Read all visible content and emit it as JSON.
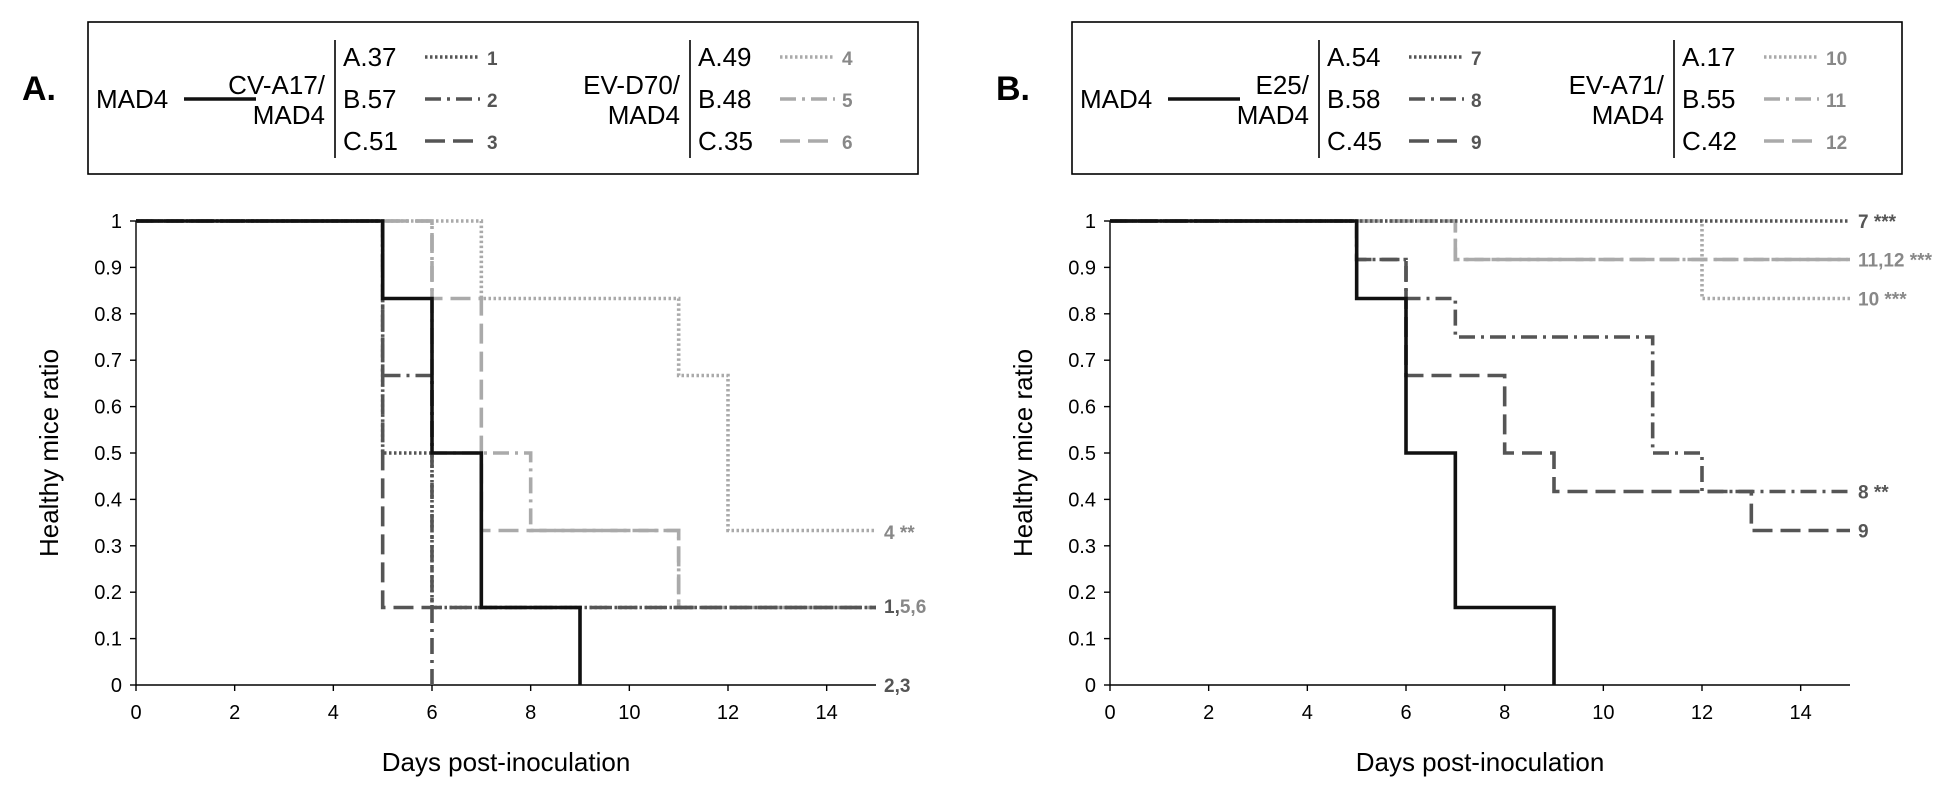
{
  "colors": {
    "mad4": "#111111",
    "dark": "#555555",
    "light": "#aaaaaa",
    "endLabelLight": "#888888",
    "axis": "#000000"
  },
  "chart_data": [
    {
      "type": "line",
      "step": true,
      "panel_label": "A.",
      "xlabel": "Days post-inoculation",
      "ylabel": "Healthy mice ratio",
      "xlim": [
        0,
        15
      ],
      "ylim": [
        0,
        1
      ],
      "xticks": [
        "0",
        "2",
        "4",
        "6",
        "8",
        "10",
        "12",
        "14"
      ],
      "yticks": [
        "0",
        "0.1",
        "0.2",
        "0.3",
        "0.4",
        "0.5",
        "0.6",
        "0.7",
        "0.8",
        "0.9",
        "1"
      ],
      "legend": {
        "reference": "MAD4",
        "groups": [
          {
            "name1": "CV-A17/",
            "name2": "MAD4",
            "items": [
              {
                "label": "A.37",
                "num": "1"
              },
              {
                "label": "B.57",
                "num": "2"
              },
              {
                "label": "C.51",
                "num": "3"
              }
            ]
          },
          {
            "name1": "EV-D70/",
            "name2": "MAD4",
            "items": [
              {
                "label": "A.49",
                "num": "4"
              },
              {
                "label": "B.48",
                "num": "5"
              },
              {
                "label": "C.35",
                "num": "6"
              }
            ]
          }
        ]
      },
      "end_labels": [
        {
          "y": 0.33,
          "parts": [
            {
              "t": "4 **",
              "c": "light"
            }
          ]
        },
        {
          "y": 0.17,
          "parts": [
            {
              "t": "1,",
              "c": "dark"
            },
            {
              "t": "5,6",
              "c": "light"
            }
          ]
        },
        {
          "y": 0.0,
          "parts": [
            {
              "t": "2,3",
              "c": "dark"
            }
          ]
        }
      ],
      "series": [
        {
          "name": "MAD4",
          "style": "solid",
          "color": "mad4",
          "x": [
            0,
            5,
            6,
            7,
            9
          ],
          "y": [
            1,
            0.833,
            0.5,
            0.167,
            0
          ],
          "end": 9
        },
        {
          "name": "1",
          "style": "dotted",
          "color": "dark",
          "x": [
            0,
            5,
            6,
            15
          ],
          "y": [
            1,
            0.5,
            0.167,
            0.167
          ],
          "end": 15
        },
        {
          "name": "2",
          "style": "dashdot",
          "color": "dark",
          "x": [
            0,
            5,
            6
          ],
          "y": [
            1,
            0.667,
            0
          ],
          "end": 6
        },
        {
          "name": "3",
          "style": "dashed",
          "color": "dark",
          "x": [
            0,
            5,
            15
          ],
          "y": [
            1,
            0.167,
            0.167
          ],
          "end": 15
        },
        {
          "name": "4",
          "style": "dotted",
          "color": "light",
          "x": [
            0,
            6,
            7,
            11,
            12,
            15
          ],
          "y": [
            1,
            1,
            0.833,
            0.667,
            0.333,
            0.333
          ],
          "end": 15
        },
        {
          "name": "5",
          "style": "dashdot",
          "color": "light",
          "x": [
            0,
            6,
            8,
            11,
            15
          ],
          "y": [
            1,
            0.5,
            0.333,
            0.167,
            0.167
          ],
          "end": 15
        },
        {
          "name": "6",
          "style": "dashed",
          "color": "light",
          "x": [
            0,
            6,
            7,
            11,
            15
          ],
          "y": [
            1,
            0.833,
            0.333,
            0.167,
            0.167
          ],
          "end": 15
        }
      ]
    },
    {
      "type": "line",
      "step": true,
      "panel_label": "B.",
      "xlabel": "Days post-inoculation",
      "ylabel": "Healthy mice ratio",
      "xlim": [
        0,
        15
      ],
      "ylim": [
        0,
        1
      ],
      "xticks": [
        "0",
        "2",
        "4",
        "6",
        "8",
        "10",
        "12",
        "14"
      ],
      "yticks": [
        "0",
        "0.1",
        "0.2",
        "0.3",
        "0.4",
        "0.5",
        "0.6",
        "0.7",
        "0.8",
        "0.9",
        "1"
      ],
      "legend": {
        "reference": "MAD4",
        "groups": [
          {
            "name1": "E25/",
            "name2": "MAD4",
            "items": [
              {
                "label": "A.54",
                "num": "7"
              },
              {
                "label": "B.58",
                "num": "8"
              },
              {
                "label": "C.45",
                "num": "9"
              }
            ]
          },
          {
            "name1": "EV-A71/",
            "name2": "MAD4",
            "items": [
              {
                "label": "A.17",
                "num": "10"
              },
              {
                "label": "B.55",
                "num": "11"
              },
              {
                "label": "C.42",
                "num": "12"
              }
            ]
          }
        ]
      },
      "end_labels": [
        {
          "y": 1.0,
          "parts": [
            {
              "t": "7 ***",
              "c": "dark"
            }
          ]
        },
        {
          "y": 0.917,
          "parts": [
            {
              "t": "11,12 ***",
              "c": "light"
            }
          ]
        },
        {
          "y": 0.833,
          "parts": [
            {
              "t": "10 ***",
              "c": "light"
            }
          ]
        },
        {
          "y": 0.417,
          "parts": [
            {
              "t": "8 **",
              "c": "dark"
            }
          ]
        },
        {
          "y": 0.333,
          "parts": [
            {
              "t": "9",
              "c": "dark"
            }
          ]
        }
      ],
      "series": [
        {
          "name": "MAD4",
          "style": "solid",
          "color": "mad4",
          "x": [
            0,
            5,
            6,
            7,
            9
          ],
          "y": [
            1,
            0.833,
            0.5,
            0.167,
            0
          ],
          "end": 9
        },
        {
          "name": "7",
          "style": "dotted",
          "color": "dark",
          "x": [
            0,
            15
          ],
          "y": [
            1,
            1
          ],
          "end": 15
        },
        {
          "name": "8",
          "style": "dashdot",
          "color": "dark",
          "x": [
            0,
            5,
            6,
            7,
            11,
            12,
            15
          ],
          "y": [
            1,
            0.917,
            0.833,
            0.75,
            0.5,
            0.417,
            0.417
          ],
          "end": 15
        },
        {
          "name": "9",
          "style": "dashed",
          "color": "dark",
          "x": [
            0,
            5,
            6,
            8,
            9,
            13,
            15
          ],
          "y": [
            1,
            0.917,
            0.667,
            0.5,
            0.417,
            0.333,
            0.333
          ],
          "end": 15
        },
        {
          "name": "10",
          "style": "dotted",
          "color": "light",
          "x": [
            0,
            12,
            15
          ],
          "y": [
            1,
            0.833,
            0.833
          ],
          "end": 15
        },
        {
          "name": "11",
          "style": "dashdot",
          "color": "light",
          "x": [
            0,
            7,
            15
          ],
          "y": [
            1,
            0.917,
            0.917
          ],
          "end": 15
        },
        {
          "name": "12",
          "style": "dashed",
          "color": "light",
          "x": [
            0,
            7,
            15
          ],
          "y": [
            1,
            0.917,
            0.917
          ],
          "end": 15
        }
      ]
    }
  ]
}
